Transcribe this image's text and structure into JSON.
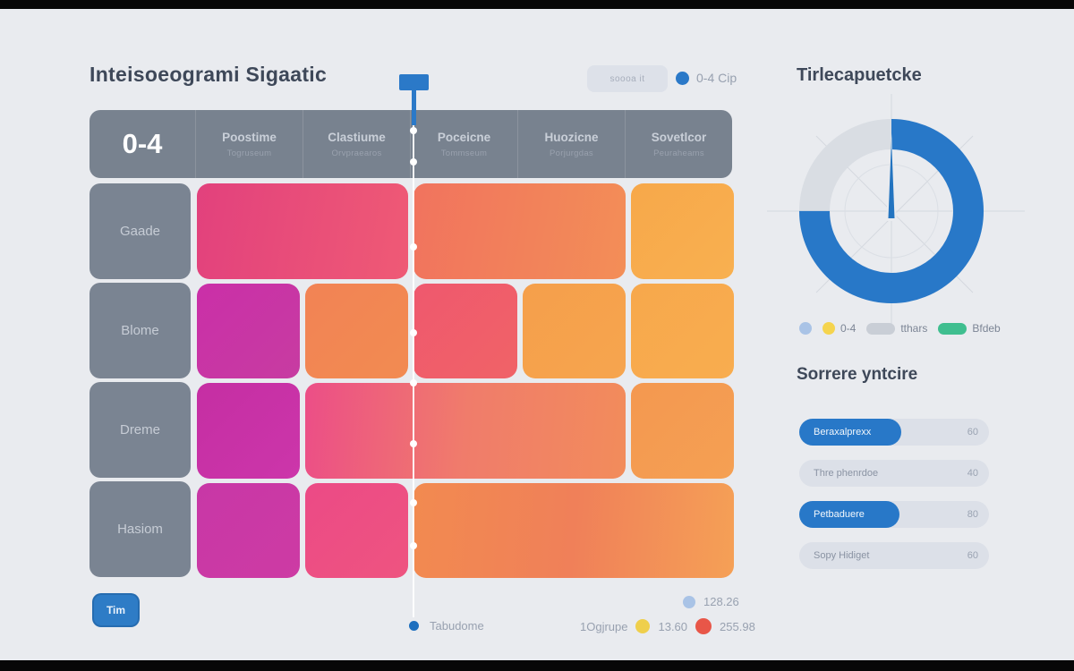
{
  "header": {
    "title": "Inteisoeogrami Sigaatic",
    "badge": "soooa it",
    "marker_caption": "0-4 Cip"
  },
  "heatmap": {
    "corner": "0-4",
    "columns": [
      {
        "title": "Poostime",
        "subtitle": "Togruseum"
      },
      {
        "title": "Clastiume",
        "subtitle": "Orvpraearos"
      },
      {
        "title": "Poceicne",
        "subtitle": "Tommseum"
      },
      {
        "title": "Huozicne",
        "subtitle": "Porjurgdas"
      },
      {
        "title": "Sovetlcor",
        "subtitle": "Peuraheams"
      }
    ],
    "rows": [
      "Gaade",
      "Blome",
      "Dreme",
      "Hasiom"
    ],
    "cells": [
      {
        "row": 1,
        "col": 1,
        "span": 2,
        "gradient": "linear-gradient(100deg,#E2417D,#EF5A75)"
      },
      {
        "row": 1,
        "col": 3,
        "span": 2,
        "gradient": "linear-gradient(100deg,#F1735E,#F38E57)"
      },
      {
        "row": 1,
        "col": 5,
        "span": 1,
        "gradient": "linear-gradient(135deg,#F7A84A,#F8B050)"
      },
      {
        "row": 2,
        "col": 1,
        "span": 1,
        "gradient": "linear-gradient(135deg,#CA2FA8,#C73CA1)"
      },
      {
        "row": 2,
        "col": 2,
        "span": 1,
        "gradient": "linear-gradient(135deg,#F28355,#F28B51)"
      },
      {
        "row": 2,
        "col": 3,
        "span": 1,
        "gradient": "linear-gradient(135deg,#EF586E,#F06367)"
      },
      {
        "row": 2,
        "col": 4,
        "span": 1,
        "gradient": "linear-gradient(135deg,#F59F4B,#F6A54E)"
      },
      {
        "row": 2,
        "col": 5,
        "span": 1,
        "gradient": "linear-gradient(135deg,#F7A84C,#F8AD4F)"
      },
      {
        "row": 3,
        "col": 1,
        "span": 1,
        "gradient": "linear-gradient(135deg,#C52EA3,#CC36AA)"
      },
      {
        "row": 3,
        "col": 2,
        "span": 3,
        "gradient": "linear-gradient(95deg,#EC4E87,#F07C6B,#F28C5B)"
      },
      {
        "row": 3,
        "col": 5,
        "span": 1,
        "gradient": "linear-gradient(135deg,#F49850,#F5A053)"
      },
      {
        "row": 4,
        "col": 1,
        "span": 1,
        "gradient": "linear-gradient(135deg,#C837A6,#CD3BA4)"
      },
      {
        "row": 4,
        "col": 2,
        "span": 1,
        "gradient": "linear-gradient(135deg,#EC4A86,#EE5480)"
      },
      {
        "row": 4,
        "col": 3,
        "span": 3,
        "gradient": "linear-gradient(95deg,#F28A50,#F08059,#F5A056)"
      }
    ]
  },
  "timeline": {
    "dot_offsets": [
      142,
      177,
      272,
      368,
      424,
      492,
      558,
      606
    ],
    "end_label": "Tabudome"
  },
  "donut": {
    "title": "Tirlecapuetcke",
    "legend": [
      {
        "type": "dot",
        "color": "#A9C3E6",
        "label": ""
      },
      {
        "type": "dot",
        "color": "#F5D44E",
        "label": "0-4"
      },
      {
        "type": "pill",
        "color": "#C9CED6",
        "label": "tthars"
      },
      {
        "type": "pill",
        "color": "#3FBE8F",
        "label": "Bfdeb"
      }
    ]
  },
  "bars": {
    "title": "Sorrere yntcire",
    "items": [
      {
        "label": "Beraxalprexx",
        "value": "60",
        "fill_pct": 54,
        "filled": true
      },
      {
        "label": "Thre phenrdoe",
        "value": "40",
        "fill_pct": 0,
        "filled": false
      },
      {
        "label": "Petbaduere",
        "value": "80",
        "fill_pct": 53,
        "filled": true
      },
      {
        "label": "Sopy Hidiget",
        "value": "60",
        "fill_pct": 0,
        "filled": false
      }
    ]
  },
  "footer": {
    "button": "Tim",
    "legend_top": {
      "color": "#A9C3E6",
      "label": "128.26"
    },
    "legend_row": {
      "prefix": "1Ogjrupe",
      "items": [
        {
          "color": "#EFCF4C",
          "label": "13.60"
        },
        {
          "color": "#E85648",
          "label": "255.98"
        }
      ]
    }
  },
  "chart_data": [
    {
      "type": "heatmap",
      "title": "Inteisoeogrami Sigaatic",
      "scale_label": "0-4",
      "rows": [
        "Gaade",
        "Blome",
        "Dreme",
        "Hasiom"
      ],
      "columns": [
        "Poostime",
        "Clastiume",
        "Poceicne",
        "Huozicne",
        "Sovetlcor"
      ],
      "cells_note": "color matrix, merged cells; colors encode intensity on 0-4 scale",
      "cell_colors_by_row": [
        [
          "pink span2",
          "salmon-orange span2",
          "amber"
        ],
        [
          "magenta",
          "orange",
          "watermelon",
          "amber",
          "amber"
        ],
        [
          "magenta",
          "pink-to-orange span3",
          "orange"
        ],
        [
          "magenta",
          "pink",
          "orange span3"
        ]
      ]
    },
    {
      "type": "pie",
      "title": "Tirlecapuetcke",
      "labels": [
        "0-4",
        "tthars"
      ],
      "values": [
        75,
        25
      ],
      "colors": [
        "#2878C8",
        "#D9DDE3"
      ],
      "donut": true,
      "needle_angle_deg": 0,
      "legend_position": "bottom"
    },
    {
      "type": "bar",
      "title": "Sorrere yntcire",
      "categories": [
        "Beraxalprexx",
        "Thre phenrdoe",
        "Petbaduere",
        "Sopy Hidiget"
      ],
      "values": [
        60,
        40,
        80,
        60
      ],
      "highlighted": [
        true,
        false,
        true,
        false
      ],
      "orientation": "horizontal"
    }
  ]
}
